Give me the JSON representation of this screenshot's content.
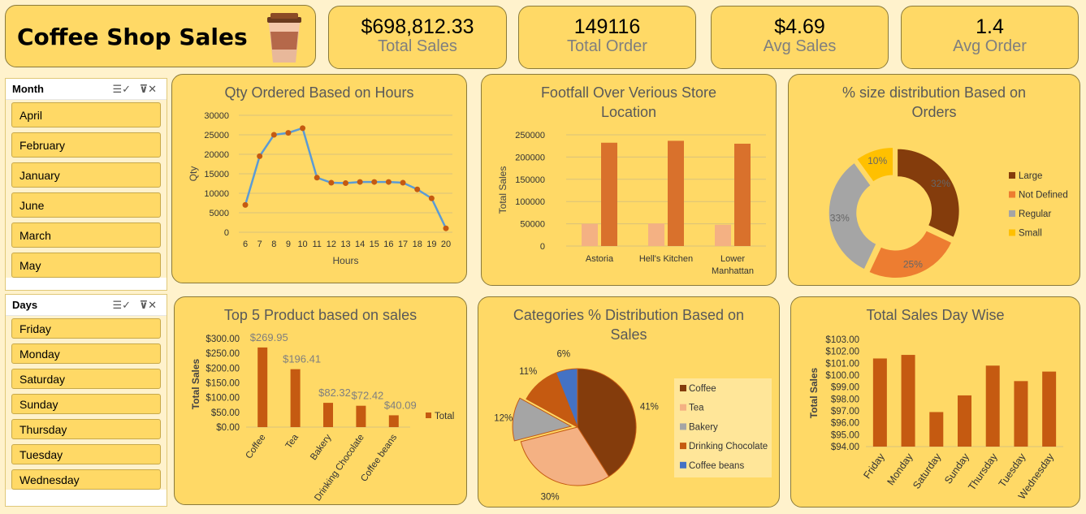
{
  "header": {
    "title": "Coffee Shop Sales",
    "icon": "coffee-cup-icon"
  },
  "kpis": [
    {
      "value": "$698,812.33",
      "label": "Total Sales"
    },
    {
      "value": "149116",
      "label": "Total Order"
    },
    {
      "value": "$4.69",
      "label": "Avg Sales"
    },
    {
      "value": "1.4",
      "label": "Avg Order"
    }
  ],
  "slicers": {
    "month": {
      "title": "Month",
      "items": [
        "April",
        "February",
        "January",
        "June",
        "March",
        "May"
      ]
    },
    "days": {
      "title": "Days",
      "items": [
        "Friday",
        "Monday",
        "Saturday",
        "Sunday",
        "Thursday",
        "Tuesday",
        "Wednesday"
      ]
    }
  },
  "colors": {
    "card": "#FFD966",
    "line": "#5B9BD5",
    "marker": "#C55A11",
    "bar_dark": "#C55A11",
    "bar_mid": "#D9712C",
    "bar_light": "#F4B183"
  },
  "chart_data": [
    {
      "id": "qty-hours",
      "type": "line",
      "title": "Qty Ordered Based on Hours",
      "xlabel": "Hours",
      "ylabel": "Qty",
      "ylim": [
        0,
        30000
      ],
      "yticks": [
        0,
        5000,
        10000,
        15000,
        20000,
        25000,
        30000
      ],
      "x": [
        "6",
        "7",
        "8",
        "9",
        "10",
        "11",
        "12",
        "13",
        "14",
        "15",
        "16",
        "17",
        "18",
        "19",
        "20"
      ],
      "values": [
        7000,
        19500,
        25000,
        25500,
        26700,
        14000,
        12700,
        12600,
        12900,
        12900,
        12900,
        12700,
        11000,
        8700,
        1000
      ],
      "grid": true
    },
    {
      "id": "footfall",
      "type": "bar",
      "title": "Footfall Over Verious Store Location",
      "ylabel": "Total Sales",
      "ylim": [
        0,
        250000
      ],
      "yticks": [
        0,
        50000,
        100000,
        150000,
        200000,
        250000
      ],
      "categories": [
        "Astoria",
        "Hell's Kitchen",
        "Lower Manhattan"
      ],
      "series": [
        {
          "values": [
            50000,
            50700,
            47800
          ]
        },
        {
          "values": [
            232200,
            236500,
            230000
          ]
        }
      ],
      "grid": true
    },
    {
      "id": "size-dist",
      "type": "pie",
      "variant": "doughnut",
      "title": "% size distribution Based on Orders",
      "labels": [
        "Large",
        "Not Defined",
        "Regular",
        "Small"
      ],
      "values": [
        32,
        25,
        33,
        10
      ],
      "value_labels": [
        "32%",
        "25%",
        "33%",
        "10%"
      ],
      "colors": [
        "#843C0C",
        "#ED7D31",
        "#A5A5A5",
        "#FFC000"
      ],
      "legend": "right"
    },
    {
      "id": "top5",
      "type": "bar",
      "title": "Top 5 Product based on sales",
      "ylabel": "Total Sales",
      "ylim": [
        0,
        300
      ],
      "yticks": [
        "$0.00",
        "$50.00",
        "$100.00",
        "$150.00",
        "$200.00",
        "$250.00",
        "$300.00"
      ],
      "categories": [
        "Coffee",
        "Tea",
        "Bakery",
        "Drinking Chocolate",
        "Coffee beans"
      ],
      "series": [
        {
          "name": "Total",
          "values": [
            269.95,
            196.41,
            82.32,
            72.42,
            40.09
          ]
        }
      ],
      "data_labels": [
        "$269.95",
        "$196.41",
        "$82.32",
        "$72.42",
        "$40.09"
      ],
      "legend": "right"
    },
    {
      "id": "categories",
      "type": "pie",
      "title": "Categories % Distribution Based on Sales",
      "labels": [
        "Coffee",
        "Tea",
        "Bakery",
        "Drinking Chocolate",
        "Coffee beans"
      ],
      "values": [
        41,
        30,
        12,
        11,
        6
      ],
      "value_labels": [
        "41%",
        "30%",
        "12%",
        "11%",
        "6%"
      ],
      "colors": [
        "#843C0C",
        "#F4B183",
        "#A5A5A5",
        "#C55A11",
        "#4472C4"
      ],
      "legend": "right"
    },
    {
      "id": "daywise",
      "type": "bar",
      "title": "Total Sales Day Wise",
      "ylabel": "Total Sales",
      "ylim": [
        94,
        103
      ],
      "yticks": [
        "$94.00",
        "$95.00",
        "$96.00",
        "$97.00",
        "$98.00",
        "$99.00",
        "$100.00",
        "$101.00",
        "$102.00",
        "$103.00"
      ],
      "categories": [
        "Friday",
        "Monday",
        "Saturday",
        "Sunday",
        "Thursday",
        "Tuesday",
        "Wednesday"
      ],
      "values": [
        101.4,
        101.7,
        96.9,
        98.3,
        100.8,
        99.5,
        100.3
      ]
    }
  ]
}
